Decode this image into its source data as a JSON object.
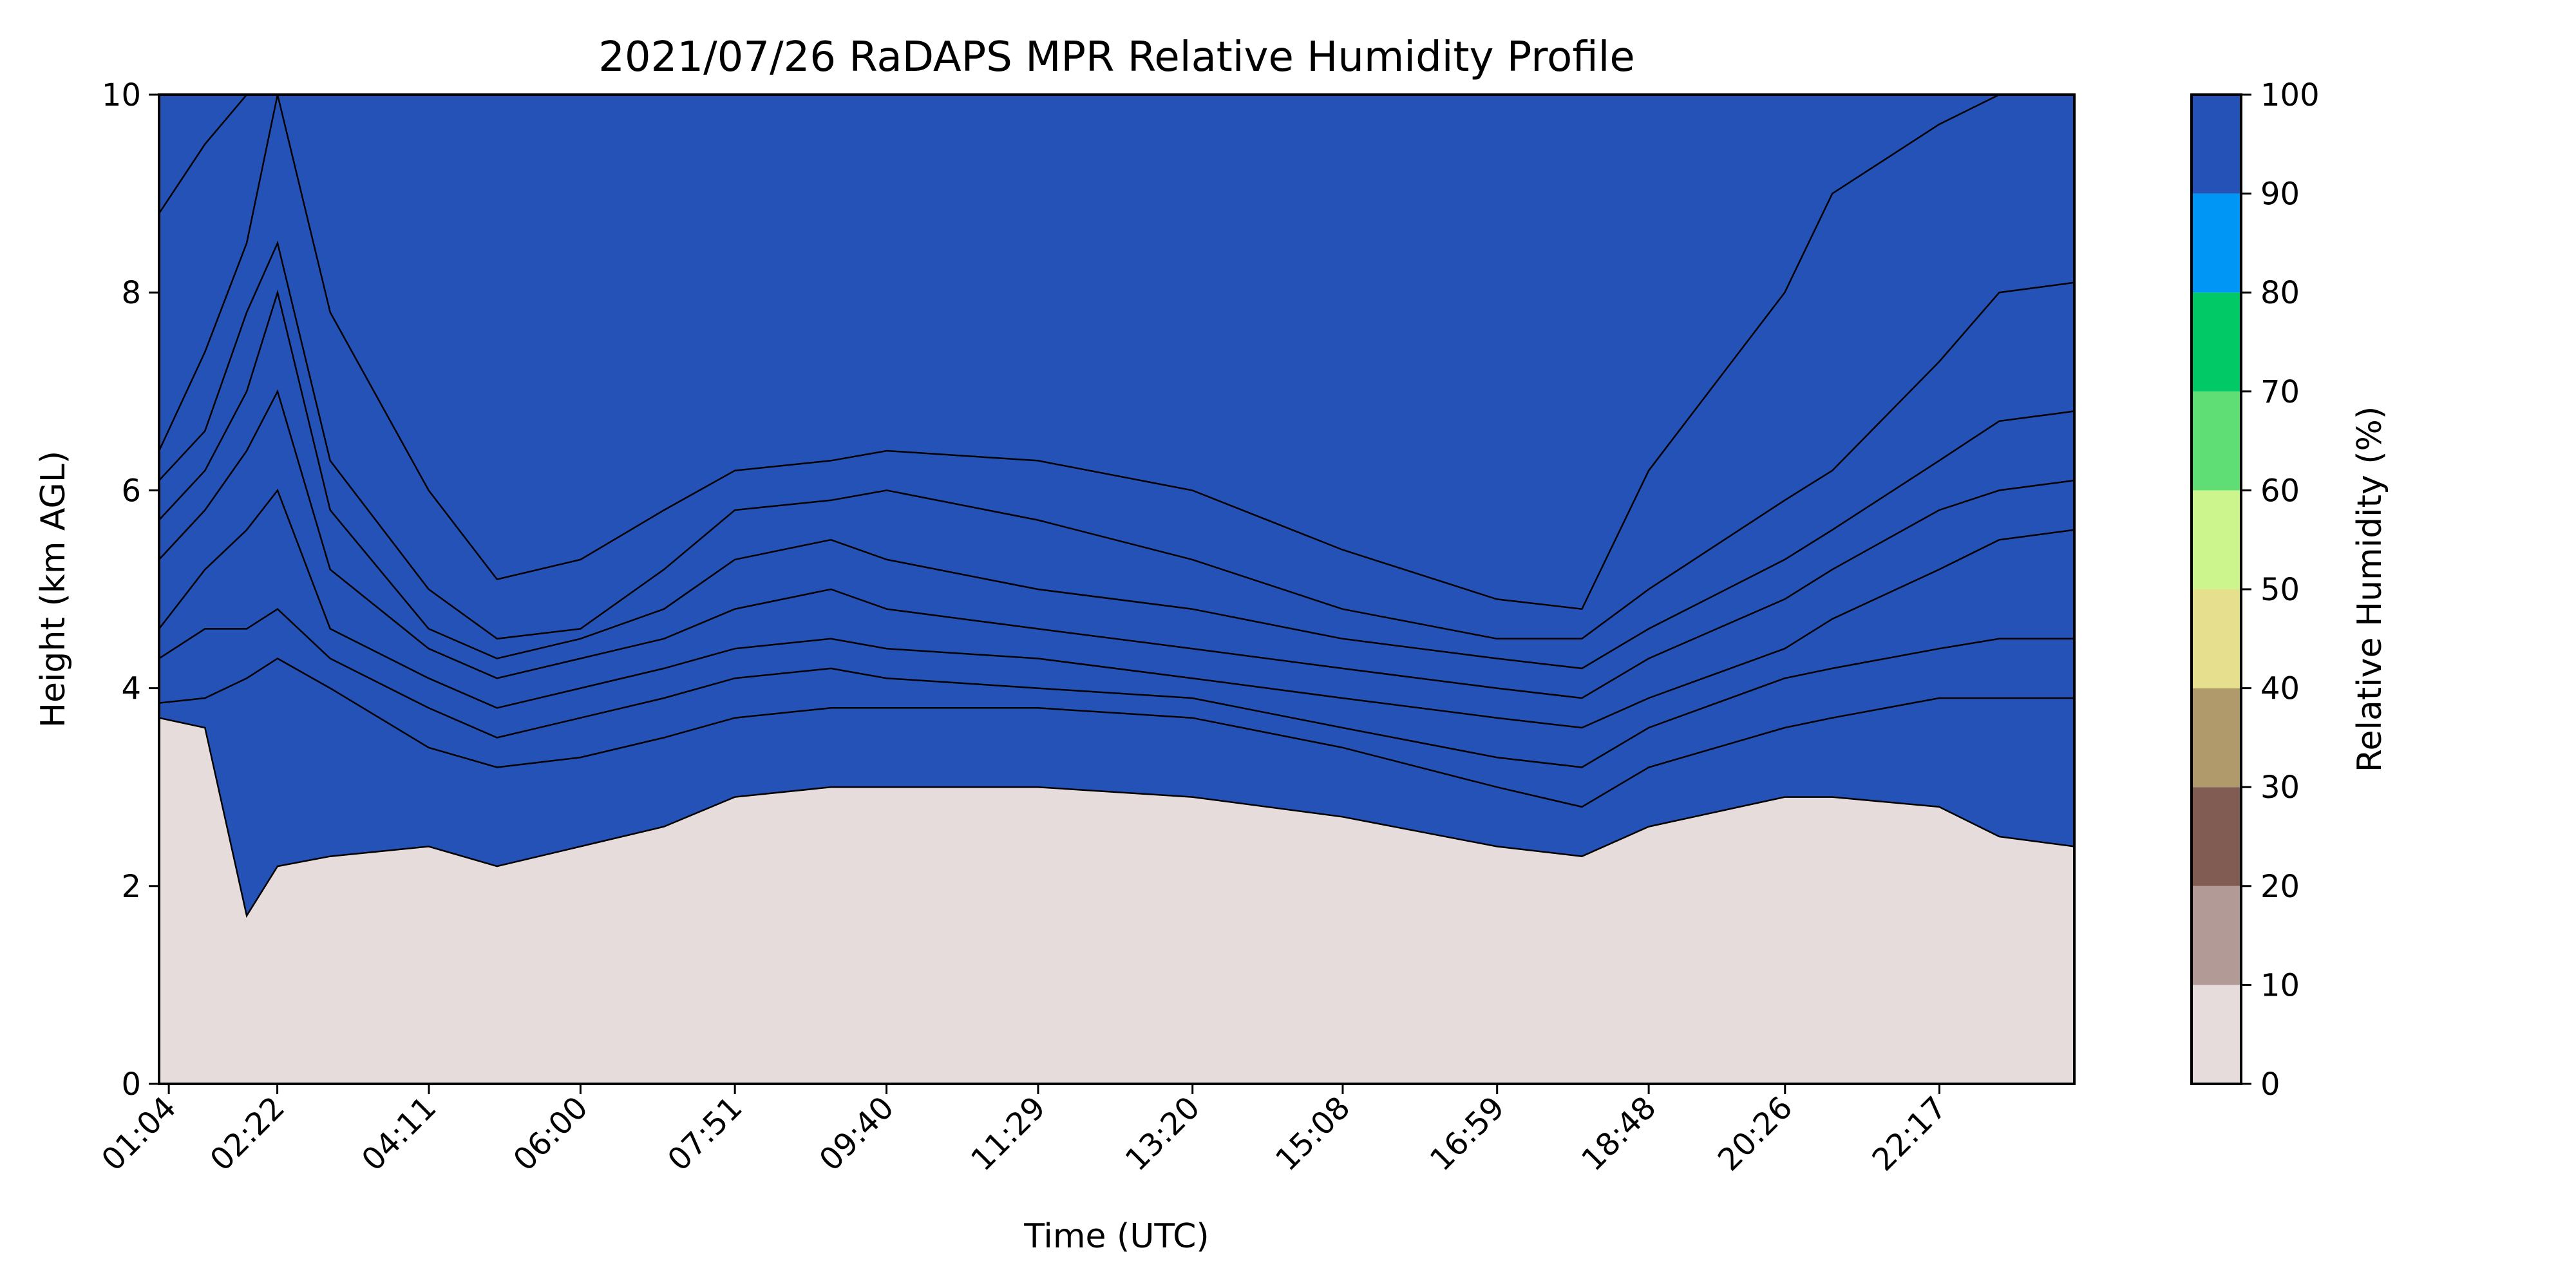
{
  "chart_data": {
    "type": "heatmap",
    "title": "2021/07/26 RaDAPS MPR Relative Humidity Profile",
    "xlabel": "Time (UTC)",
    "ylabel": "Height (km AGL)",
    "colorbar_label": "Relative Humidity (%)",
    "x_tick_labels": [
      "01:04",
      "02:22",
      "04:11",
      "06:00",
      "07:51",
      "09:40",
      "11:29",
      "13:20",
      "15:08",
      "16:59",
      "18:48",
      "20:26",
      "22:17"
    ],
    "x_tick_hours": [
      1.0667,
      2.3667,
      4.1833,
      6.0,
      7.85,
      9.6667,
      11.4833,
      13.3333,
      15.1333,
      16.9833,
      18.8,
      20.4333,
      22.2833
    ],
    "xlim_hours": [
      0.95,
      23.9
    ],
    "y_ticks": [
      0,
      2,
      4,
      6,
      8,
      10
    ],
    "ylim": [
      0,
      10
    ],
    "levels": [
      0,
      10,
      20,
      30,
      40,
      50,
      60,
      70,
      80,
      90,
      100
    ],
    "level_colors": [
      "#e5dcdb",
      "#b29b97",
      "#805c53",
      "#b09a6b",
      "#e5df8e",
      "#ccf58e",
      "#5fde76",
      "#00c965",
      "#0096f5",
      "#2452b7"
    ],
    "boundaries": {
      "x": [
        0.95,
        1.5,
        2.0,
        2.37,
        3.0,
        4.18,
        5.0,
        6.0,
        7.0,
        7.85,
        9.0,
        9.67,
        11.48,
        13.33,
        15.13,
        16.98,
        18.0,
        18.8,
        20.43,
        21.0,
        22.28,
        23.0,
        23.9
      ],
      "lines": [
        [
          0.0,
          0.0,
          0.0,
          0.0,
          0.0,
          0.0,
          0.0,
          0.0,
          0.0,
          0.0,
          0.0,
          0.0,
          0.0,
          0.0,
          0.0,
          0.0,
          0.0,
          0.0,
          0.0,
          0.0,
          0.0,
          0.0,
          0.0
        ],
        [
          8.8,
          9.5,
          10.0,
          10.0,
          10.0,
          10.0,
          10.0,
          10.0,
          10.0,
          10.0,
          10.0,
          10.0,
          10.0,
          10.0,
          10.0,
          10.0,
          10.0,
          10.0,
          10.0,
          10.0,
          10.0,
          10.0,
          10.0
        ],
        [
          6.4,
          7.4,
          8.5,
          10.0,
          7.8,
          6.0,
          5.1,
          5.3,
          5.8,
          6.2,
          6.3,
          6.4,
          6.3,
          6.0,
          5.4,
          4.9,
          4.8,
          6.2,
          8.0,
          9.0,
          9.7,
          10.0,
          10.0
        ],
        [
          6.1,
          6.6,
          7.8,
          8.5,
          6.3,
          5.0,
          4.5,
          4.6,
          5.2,
          5.8,
          5.9,
          6.0,
          5.7,
          5.3,
          4.8,
          4.5,
          4.5,
          5.0,
          5.9,
          6.2,
          7.3,
          8.0,
          8.1
        ],
        [
          5.7,
          6.2,
          7.0,
          8.0,
          5.8,
          4.6,
          4.3,
          4.5,
          4.8,
          5.3,
          5.5,
          5.3,
          5.0,
          4.8,
          4.5,
          4.3,
          4.2,
          4.6,
          5.3,
          5.6,
          6.3,
          6.7,
          6.8
        ],
        [
          5.3,
          5.8,
          6.4,
          7.0,
          5.2,
          4.4,
          4.1,
          4.3,
          4.5,
          4.8,
          5.0,
          4.8,
          4.6,
          4.4,
          4.2,
          4.0,
          3.9,
          4.3,
          4.9,
          5.2,
          5.8,
          6.0,
          6.1
        ],
        [
          4.6,
          5.2,
          5.6,
          6.0,
          4.6,
          4.1,
          3.8,
          4.0,
          4.2,
          4.4,
          4.5,
          4.4,
          4.3,
          4.1,
          3.9,
          3.7,
          3.6,
          3.9,
          4.4,
          4.7,
          5.2,
          5.5,
          5.6
        ],
        [
          4.3,
          4.6,
          4.6,
          4.8,
          4.3,
          3.8,
          3.5,
          3.7,
          3.9,
          4.1,
          4.2,
          4.1,
          4.0,
          3.9,
          3.6,
          3.3,
          3.2,
          3.6,
          4.1,
          4.2,
          4.4,
          4.5,
          4.5
        ],
        [
          3.85,
          3.9,
          4.1,
          4.3,
          4.0,
          3.4,
          3.2,
          3.3,
          3.5,
          3.7,
          3.8,
          3.8,
          3.8,
          3.7,
          3.4,
          3.0,
          2.8,
          3.2,
          3.6,
          3.7,
          3.9,
          3.9,
          3.9
        ],
        [
          3.7,
          3.6,
          1.7,
          2.2,
          2.3,
          2.4,
          2.2,
          2.4,
          2.6,
          2.9,
          3.0,
          3.0,
          3.0,
          2.9,
          2.7,
          2.4,
          2.3,
          2.6,
          2.9,
          2.9,
          2.8,
          2.5,
          2.4
        ]
      ]
    }
  }
}
